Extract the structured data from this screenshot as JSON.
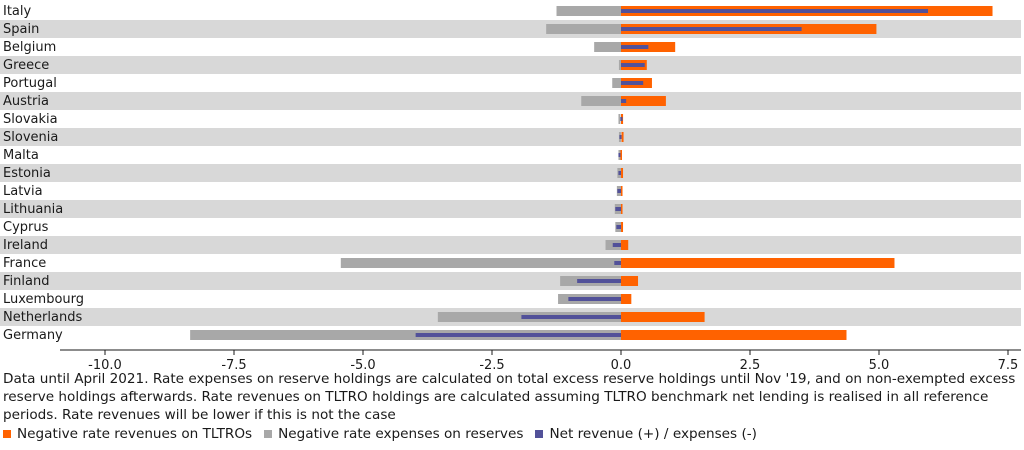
{
  "chart_data": {
    "type": "bar",
    "orientation": "horizontal",
    "categories": [
      "Italy",
      "Spain",
      "Belgium",
      "Greece",
      "Portugal",
      "Austria",
      "Slovakia",
      "Slovenia",
      "Malta",
      "Estonia",
      "Latvia",
      "Lithuania",
      "Cyprus",
      "Ireland",
      "France",
      "Finland",
      "Luxembourg",
      "Netherlands",
      "Germany"
    ],
    "series": [
      {
        "name": "Negative rate revenues on TLTROs",
        "color": "#ff6200",
        "values": [
          7.2,
          4.95,
          1.05,
          0.5,
          0.6,
          0.87,
          0.04,
          0.03,
          0.0,
          0.02,
          0.01,
          0.01,
          0.02,
          0.14,
          5.3,
          0.33,
          0.2,
          1.62,
          4.37
        ]
      },
      {
        "name": "Negative rate expenses on reserves",
        "color": "#a8a8a8",
        "values": [
          -1.25,
          -1.45,
          -0.52,
          -0.04,
          -0.17,
          -0.77,
          -0.03,
          -0.04,
          -0.03,
          -0.07,
          -0.08,
          -0.12,
          -0.11,
          -0.3,
          -5.43,
          -1.18,
          -1.22,
          -3.55,
          -8.35
        ]
      },
      {
        "name": "Net revenue (+) / expenses (-)",
        "color": "#525199",
        "values": [
          5.95,
          3.5,
          0.53,
          0.46,
          0.43,
          0.1,
          0.01,
          -0.01,
          -0.03,
          -0.05,
          -0.07,
          -0.11,
          -0.09,
          -0.16,
          -0.13,
          -0.85,
          -1.02,
          -1.93,
          -3.98
        ]
      }
    ],
    "xlim": [
      -10.5,
      7.7
    ],
    "xticks": [
      -10.0,
      -7.5,
      -5.0,
      -2.5,
      0.0,
      2.5,
      5.0,
      7.5
    ],
    "xtick_labels": [
      "-10.0",
      "-7.5",
      "-5.0",
      "-2.5",
      "0.0",
      "2.5",
      "5.0",
      "7.5"
    ],
    "row_banding": true,
    "band_color": "#d8d8d8",
    "legend_position": "bottom-left"
  },
  "note": "Data until April 2021. Rate expenses on reserve holdings are calculated on total excess reserve holdings until Nov '19, and on non-exempted excess reserve holdings afterwards. Rate revenues on TLTRO holdings are calculated assuming TLTRO benchmark net lending is realised in all reference periods. Rate revenues will be lower if this is not the case",
  "legend": {
    "item0": "Negative rate revenues on TLTROs",
    "item1": "Negative rate expenses on reserves",
    "item2": "Net revenue (+) / expenses (-)"
  }
}
